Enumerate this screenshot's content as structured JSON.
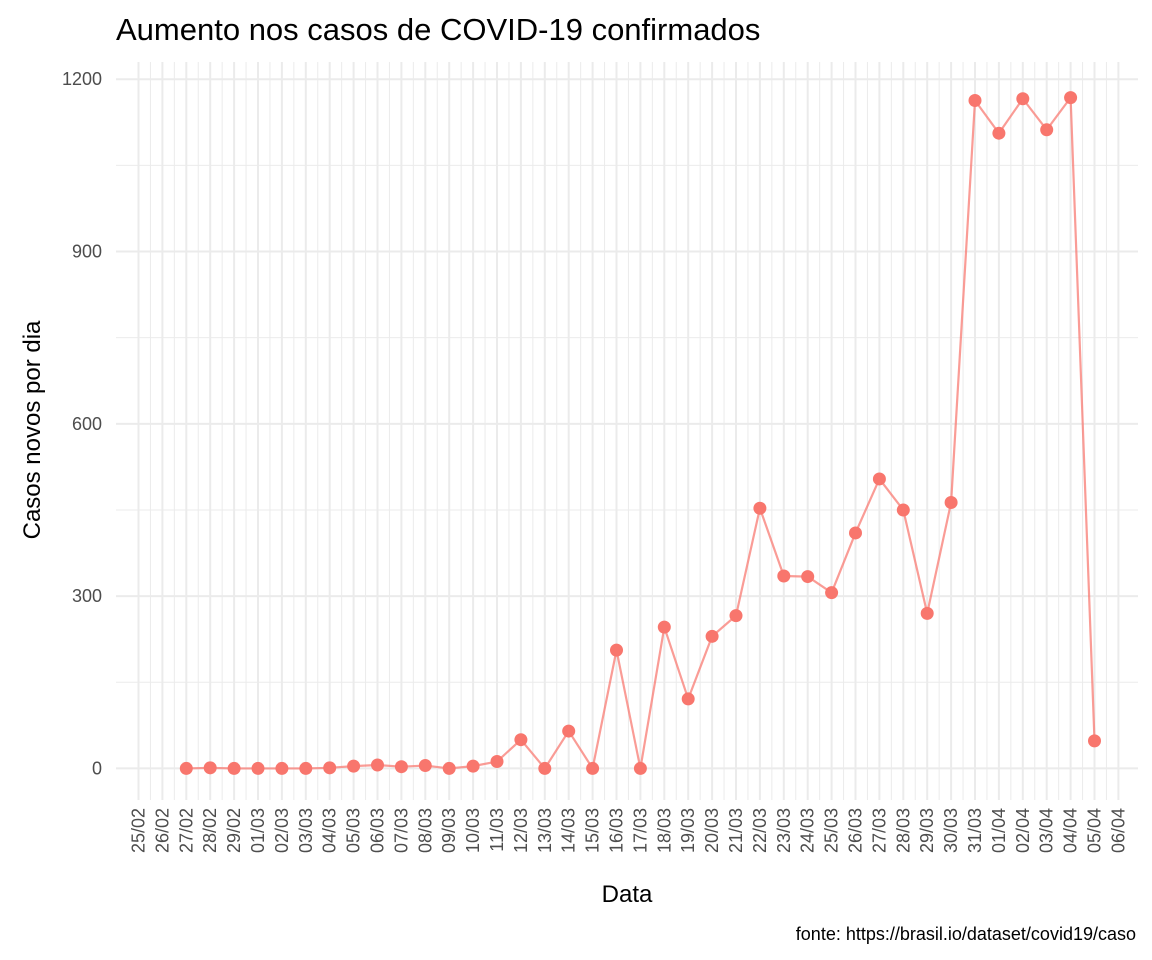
{
  "chart_data": {
    "type": "line",
    "title": "Aumento nos casos de COVID-19 confirmados",
    "xlabel": "Data",
    "ylabel": "Casos novos por dia",
    "caption": "fonte: https://brasil.io/dataset/covid19/caso",
    "x_ticks": [
      "25/02",
      "26/02",
      "27/02",
      "28/02",
      "29/02",
      "01/03",
      "02/03",
      "03/03",
      "04/03",
      "05/03",
      "06/03",
      "07/03",
      "08/03",
      "09/03",
      "10/03",
      "11/03",
      "12/03",
      "13/03",
      "14/03",
      "15/03",
      "16/03",
      "17/03",
      "18/03",
      "19/03",
      "20/03",
      "21/03",
      "22/03",
      "23/03",
      "24/03",
      "25/03",
      "26/03",
      "27/03",
      "28/03",
      "29/03",
      "30/03",
      "31/03",
      "01/04",
      "02/04",
      "03/04",
      "04/04",
      "05/04",
      "06/04"
    ],
    "y_ticks": [
      0,
      300,
      600,
      900,
      1200
    ],
    "ylim": [
      -55,
      1230
    ],
    "grid": true,
    "color": "#F8766D",
    "series": [
      {
        "x": [
          "27/02",
          "28/02",
          "29/02",
          "01/03",
          "02/03",
          "03/03",
          "04/03",
          "05/03",
          "06/03",
          "07/03",
          "08/03",
          "09/03",
          "10/03",
          "11/03",
          "12/03",
          "13/03",
          "14/03",
          "15/03",
          "16/03",
          "17/03",
          "18/03",
          "19/03",
          "20/03",
          "21/03",
          "22/03",
          "23/03",
          "24/03",
          "25/03",
          "26/03",
          "27/03",
          "28/03",
          "29/03",
          "30/03",
          "31/03",
          "01/04",
          "02/04",
          "03/04",
          "04/04",
          "05/04"
        ],
        "y": [
          0,
          1,
          0,
          0,
          0,
          0,
          1,
          4,
          6,
          3,
          5,
          0,
          4,
          12,
          50,
          0,
          65,
          0,
          206,
          0,
          246,
          121,
          230,
          266,
          453,
          335,
          334,
          306,
          410,
          504,
          450,
          270,
          463,
          1163,
          1106,
          1166,
          1112,
          1168,
          48
        ]
      }
    ]
  }
}
